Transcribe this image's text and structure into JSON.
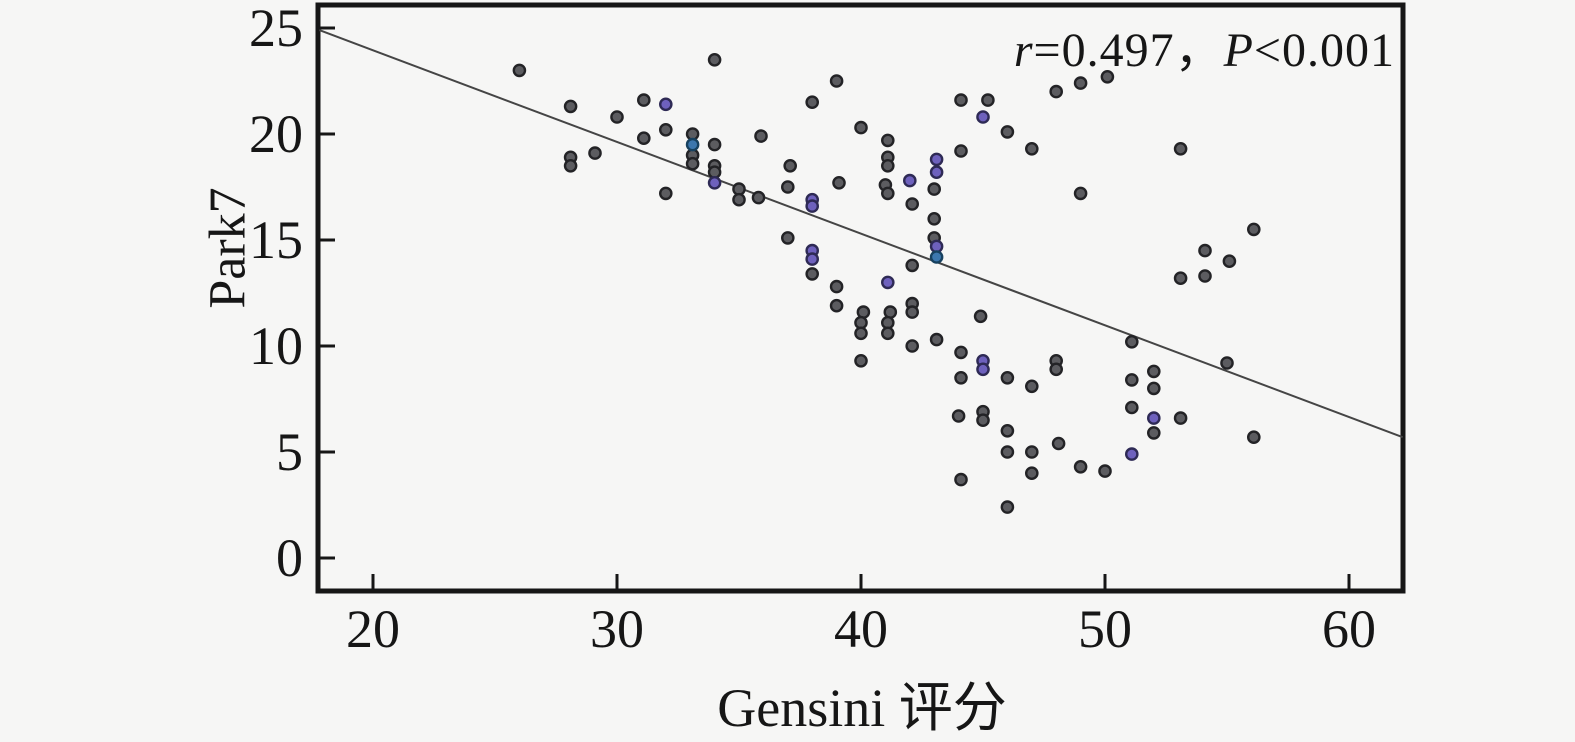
{
  "page": {
    "background": "#f6f6f5"
  },
  "chart_data": {
    "type": "scatter",
    "title": "",
    "xlabel": "Gensini 评分",
    "ylabel": "Park7",
    "x_ticks": [
      20,
      30,
      40,
      50,
      60
    ],
    "y_ticks": [
      0,
      5,
      10,
      15,
      20,
      25
    ],
    "xlim": [
      17.8,
      62.2
    ],
    "ylim": [
      -1.6,
      26.1
    ],
    "grid": false,
    "legend": "none",
    "annotation": {
      "r_var": "r",
      "r_eq": "=0.497",
      "comma": "，",
      "p_var": "P",
      "p_lt": "<0.001"
    },
    "regression_line": {
      "x1": 17.8,
      "y1": 24.9,
      "x2": 62.2,
      "y2": 5.7
    },
    "colors": {
      "axis": "#161616",
      "line": "#454545",
      "gray_fill": "#5c5c60",
      "gray_stroke": "#232326",
      "purple_fill": "#6e61bd",
      "purple_stroke": "#2e2a55",
      "blue_fill": "#3c77ae",
      "blue_stroke": "#17415f"
    },
    "series": [
      {
        "name": "observations-gray",
        "fill": "#5c5c60",
        "stroke": "#232326",
        "points": [
          [
            26.0,
            23.0
          ],
          [
            34.0,
            23.5
          ],
          [
            28.1,
            21.3
          ],
          [
            31.1,
            21.6
          ],
          [
            30.0,
            20.8
          ],
          [
            32.0,
            20.2
          ],
          [
            33.1,
            20.0
          ],
          [
            31.1,
            19.8
          ],
          [
            33.1,
            19.0
          ],
          [
            33.1,
            18.6
          ],
          [
            34.0,
            19.5
          ],
          [
            29.1,
            19.1
          ],
          [
            28.1,
            18.9
          ],
          [
            28.1,
            18.5
          ],
          [
            34.0,
            18.5
          ],
          [
            34.0,
            18.2
          ],
          [
            35.0,
            17.4
          ],
          [
            35.0,
            16.9
          ],
          [
            32.0,
            17.2
          ],
          [
            39.0,
            22.5
          ],
          [
            38.0,
            21.5
          ],
          [
            44.1,
            21.6
          ],
          [
            45.2,
            21.6
          ],
          [
            48.0,
            22.0
          ],
          [
            49.0,
            22.4
          ],
          [
            50.1,
            22.7
          ],
          [
            40.0,
            20.3
          ],
          [
            46.0,
            20.1
          ],
          [
            47.0,
            19.3
          ],
          [
            41.1,
            19.7
          ],
          [
            41.1,
            18.9
          ],
          [
            41.1,
            18.5
          ],
          [
            44.1,
            19.2
          ],
          [
            37.1,
            18.5
          ],
          [
            37.0,
            17.5
          ],
          [
            35.9,
            19.9
          ],
          [
            35.8,
            17.0
          ],
          [
            39.1,
            17.7
          ],
          [
            41.0,
            17.6
          ],
          [
            41.1,
            17.2
          ],
          [
            42.1,
            16.7
          ],
          [
            43.0,
            17.4
          ],
          [
            43.0,
            16.0
          ],
          [
            43.0,
            15.1
          ],
          [
            42.1,
            13.8
          ],
          [
            37.0,
            15.1
          ],
          [
            38.0,
            13.4
          ],
          [
            39.0,
            12.8
          ],
          [
            39.0,
            11.9
          ],
          [
            40.1,
            11.6
          ],
          [
            41.2,
            11.6
          ],
          [
            42.1,
            12.0
          ],
          [
            42.1,
            11.6
          ],
          [
            44.9,
            11.4
          ],
          [
            49.0,
            17.2
          ],
          [
            53.1,
            19.3
          ],
          [
            56.1,
            15.5
          ],
          [
            54.1,
            14.5
          ],
          [
            55.1,
            14.0
          ],
          [
            54.1,
            13.3
          ],
          [
            53.1,
            13.2
          ],
          [
            40.0,
            11.1
          ],
          [
            40.0,
            10.6
          ],
          [
            41.1,
            11.1
          ],
          [
            41.1,
            10.6
          ],
          [
            42.1,
            10.0
          ],
          [
            43.1,
            10.3
          ],
          [
            40.0,
            9.3
          ],
          [
            44.1,
            9.7
          ],
          [
            44.1,
            8.5
          ],
          [
            46.0,
            8.5
          ],
          [
            47.0,
            8.1
          ],
          [
            48.0,
            9.3
          ],
          [
            48.0,
            8.9
          ],
          [
            44.0,
            6.7
          ],
          [
            45.0,
            6.9
          ],
          [
            45.0,
            6.5
          ],
          [
            46.0,
            6.0
          ],
          [
            46.0,
            5.0
          ],
          [
            47.0,
            5.0
          ],
          [
            48.1,
            5.4
          ],
          [
            47.0,
            4.0
          ],
          [
            49.0,
            4.3
          ],
          [
            50.0,
            4.1
          ],
          [
            44.1,
            3.7
          ],
          [
            46.0,
            2.4
          ],
          [
            51.1,
            10.2
          ],
          [
            55.0,
            9.2
          ],
          [
            52.0,
            8.8
          ],
          [
            51.1,
            8.4
          ],
          [
            52.0,
            8.0
          ],
          [
            51.1,
            7.1
          ],
          [
            53.1,
            6.6
          ],
          [
            52.0,
            5.9
          ],
          [
            56.1,
            5.7
          ]
        ]
      },
      {
        "name": "observations-purple",
        "fill": "#6e61bd",
        "stroke": "#2e2a55",
        "points": [
          [
            32.0,
            21.4
          ],
          [
            34.0,
            17.7
          ],
          [
            45.0,
            20.8
          ],
          [
            38.0,
            16.9
          ],
          [
            38.0,
            16.6
          ],
          [
            42.0,
            17.8
          ],
          [
            43.1,
            18.8
          ],
          [
            43.1,
            18.2
          ],
          [
            43.1,
            14.7
          ],
          [
            41.1,
            13.0
          ],
          [
            38.0,
            14.5
          ],
          [
            38.0,
            14.1
          ],
          [
            45.0,
            9.3
          ],
          [
            45.0,
            8.9
          ],
          [
            52.0,
            6.6
          ],
          [
            51.1,
            4.9
          ]
        ]
      },
      {
        "name": "observations-blue",
        "fill": "#3c77ae",
        "stroke": "#17415f",
        "points": [
          [
            33.1,
            19.5
          ],
          [
            43.1,
            14.2
          ]
        ]
      }
    ]
  }
}
